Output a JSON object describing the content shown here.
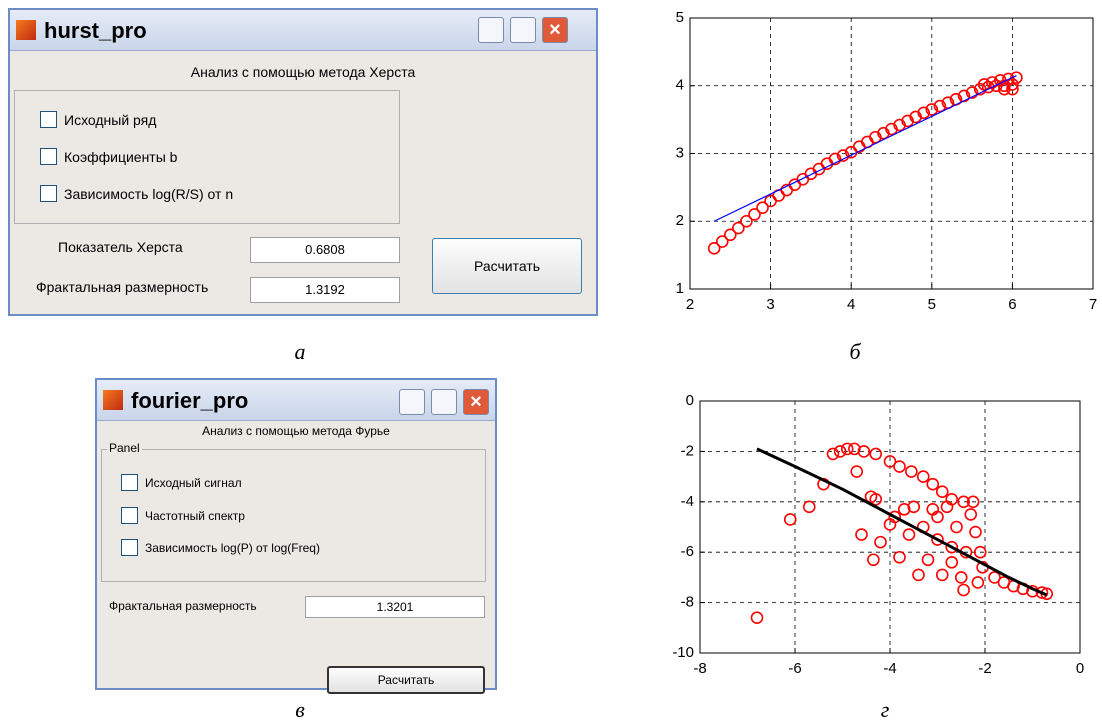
{
  "hurst": {
    "title": "hurst_pro",
    "heading": "Анализ с помощью метода Херста",
    "checkboxes": [
      "Исходный ряд",
      "Коэффициенты b",
      "Зависимость log(R/S) от n"
    ],
    "fields": [
      {
        "label": "Показатель Херста",
        "value": "0.6808"
      },
      {
        "label": "Фрактальная размерность",
        "value": "1.3192"
      }
    ],
    "button": "Расчитать"
  },
  "fourier": {
    "title": "fourier_pro",
    "heading": "Анализ с помощью метода Фурье",
    "panel": "Panel",
    "checkboxes": [
      "Исходный сигнал",
      "Частотный спектр",
      "Зависимость log(P) от log(Freq)"
    ],
    "fields": [
      {
        "label": "Фрактальная размерность",
        "value": "1.3201"
      }
    ],
    "button": "Расчитать"
  },
  "captions": [
    "а",
    "б",
    "в",
    "г"
  ],
  "chart_data": [
    {
      "type": "scatter",
      "xlim": [
        2,
        7
      ],
      "ylim": [
        1,
        5
      ],
      "xticks": [
        2,
        3,
        4,
        5,
        6,
        7
      ],
      "yticks": [
        1,
        2,
        3,
        4,
        5
      ],
      "grid": true,
      "series": [
        {
          "mode": "markers",
          "color": "#ff0000",
          "x": [
            2.3,
            2.4,
            2.5,
            2.6,
            2.7,
            2.8,
            2.9,
            3.0,
            3.1,
            3.2,
            3.3,
            3.4,
            3.5,
            3.6,
            3.7,
            3.8,
            3.9,
            4.0,
            4.1,
            4.2,
            4.3,
            4.4,
            4.5,
            4.6,
            4.7,
            4.8,
            4.9,
            5.0,
            5.1,
            5.2,
            5.3,
            5.4,
            5.5,
            5.6,
            5.65,
            5.7,
            5.75,
            5.8,
            5.85,
            5.9,
            5.95,
            6.0,
            6.05,
            5.9,
            6.0
          ],
          "values": [
            1.6,
            1.7,
            1.8,
            1.9,
            2.0,
            2.1,
            2.2,
            2.3,
            2.38,
            2.46,
            2.54,
            2.62,
            2.7,
            2.77,
            2.85,
            2.92,
            2.97,
            3.02,
            3.1,
            3.17,
            3.24,
            3.3,
            3.36,
            3.42,
            3.48,
            3.54,
            3.6,
            3.65,
            3.7,
            3.75,
            3.8,
            3.85,
            3.9,
            3.95,
            4.02,
            3.98,
            4.05,
            4.0,
            4.08,
            3.95,
            4.1,
            4.02,
            4.12,
            4.0,
            3.95
          ]
        },
        {
          "mode": "line",
          "color": "#0000ff",
          "x": [
            2.3,
            6.05
          ],
          "values": [
            2.0,
            4.15
          ]
        }
      ]
    },
    {
      "type": "scatter",
      "xlim": [
        -8,
        0
      ],
      "ylim": [
        -10,
        0
      ],
      "xticks": [
        -8,
        -6,
        -4,
        -2,
        0
      ],
      "yticks": [
        -10,
        -8,
        -6,
        -4,
        -2,
        0
      ],
      "grid": true,
      "series": [
        {
          "mode": "markers",
          "color": "#ff0000",
          "x": [
            -6.8,
            -6.1,
            -5.7,
            -5.4,
            -5.2,
            -5.05,
            -4.9,
            -4.75,
            -4.55,
            -4.3,
            -4.0,
            -3.8,
            -3.55,
            -3.3,
            -3.1,
            -2.9,
            -2.7,
            -2.45,
            -2.25,
            -4.7,
            -4.4,
            -4.3,
            -4.35,
            -4.2,
            -4.0,
            -3.9,
            -3.7,
            -3.5,
            -3.3,
            -3.2,
            -3.1,
            -3.0,
            -2.9,
            -2.8,
            -2.7,
            -2.6,
            -2.5,
            -2.45,
            -2.4,
            -2.3,
            -2.2,
            -2.15,
            -2.1,
            -3.4,
            -3.8,
            -4.6,
            -2.05,
            -1.8,
            -1.6,
            -1.4,
            -1.2,
            -1.0,
            -0.8,
            -0.7,
            -3.6,
            -3.0,
            -2.7
          ],
          "values": [
            -8.6,
            -4.7,
            -4.2,
            -3.3,
            -2.1,
            -2.0,
            -1.9,
            -1.9,
            -2.0,
            -2.1,
            -2.4,
            -2.6,
            -2.8,
            -3.0,
            -3.3,
            -3.6,
            -3.9,
            -4.0,
            -4.0,
            -2.8,
            -3.8,
            -3.9,
            -6.3,
            -5.6,
            -4.9,
            -4.6,
            -4.3,
            -4.2,
            -5.0,
            -6.3,
            -4.3,
            -5.5,
            -6.9,
            -4.2,
            -6.4,
            -5.0,
            -7.0,
            -7.5,
            -6.0,
            -4.5,
            -5.2,
            -7.2,
            -6.0,
            -6.9,
            -6.2,
            -5.3,
            -6.6,
            -7.0,
            -7.2,
            -7.35,
            -7.45,
            -7.55,
            -7.6,
            -7.65,
            -5.3,
            -4.6,
            -5.8
          ]
        },
        {
          "mode": "line",
          "color": "#000000",
          "x": [
            -6.8,
            -6.0,
            -5.0,
            -4.0,
            -3.0,
            -2.0,
            -1.5,
            -1.0,
            -0.7
          ],
          "values": [
            -1.9,
            -2.6,
            -3.5,
            -4.5,
            -5.5,
            -6.5,
            -7.0,
            -7.45,
            -7.7
          ]
        }
      ]
    }
  ]
}
